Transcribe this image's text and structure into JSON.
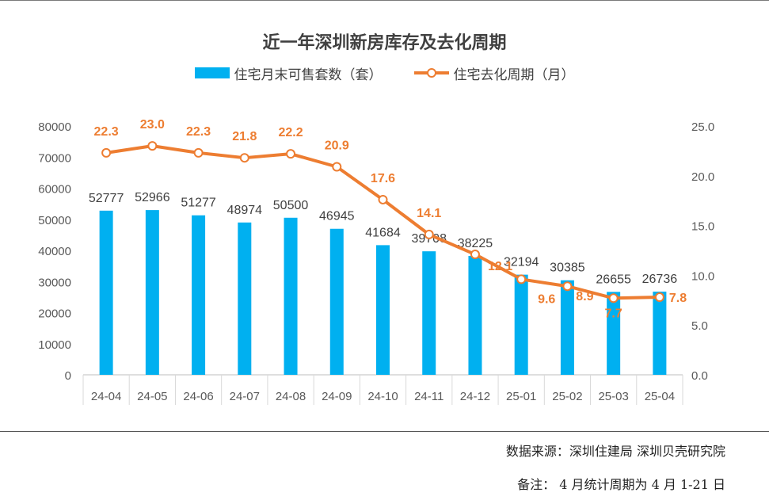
{
  "chart_data": {
    "type": "bar",
    "title": "近一年深圳新房库存及去化周期",
    "categories": [
      "24-04",
      "24-05",
      "24-06",
      "24-07",
      "24-08",
      "24-09",
      "24-10",
      "24-11",
      "24-12",
      "25-01",
      "25-02",
      "25-03",
      "25-04"
    ],
    "series": [
      {
        "name": "住宅月末可售套数（套）",
        "type": "bar",
        "axis": "left",
        "color": "#00b0f0",
        "values": [
          52777,
          52966,
          51277,
          48974,
          50500,
          46945,
          41684,
          39708,
          38225,
          32194,
          30385,
          26655,
          26736
        ]
      },
      {
        "name": "住宅去化周期（月）",
        "type": "line",
        "axis": "right",
        "color": "#ed7d31",
        "values": [
          22.3,
          23.0,
          22.3,
          21.8,
          22.2,
          20.9,
          17.6,
          14.1,
          12.1,
          9.6,
          8.9,
          7.7,
          7.8
        ]
      }
    ],
    "ylim_left": [
      0,
      80000
    ],
    "yticks_left": [
      "0",
      "10000",
      "20000",
      "30000",
      "40000",
      "50000",
      "60000",
      "70000",
      "80000"
    ],
    "ylim_right": [
      0,
      25
    ],
    "yticks_right": [
      "0.0",
      "5.0",
      "10.0",
      "15.0",
      "20.0",
      "25.0"
    ],
    "bar_labels": [
      "52777",
      "52966",
      "51277",
      "48974",
      "50500",
      "46945",
      "41684",
      "39708",
      "38225",
      "32194",
      "30385",
      "26655",
      "26736"
    ],
    "line_labels": [
      "22.3",
      "23.0",
      "22.3",
      "21.8",
      "22.2",
      "20.9",
      "17.6",
      "14.1",
      "12.1",
      "9.6",
      "8.9",
      "7.7",
      "7.8"
    ],
    "grid": false,
    "legend_position": "top"
  },
  "footer": {
    "source": "数据来源：深圳住建局  深圳贝壳研究院",
    "note": "备注：  4 月统计周期为 4 月 1-21 日"
  }
}
